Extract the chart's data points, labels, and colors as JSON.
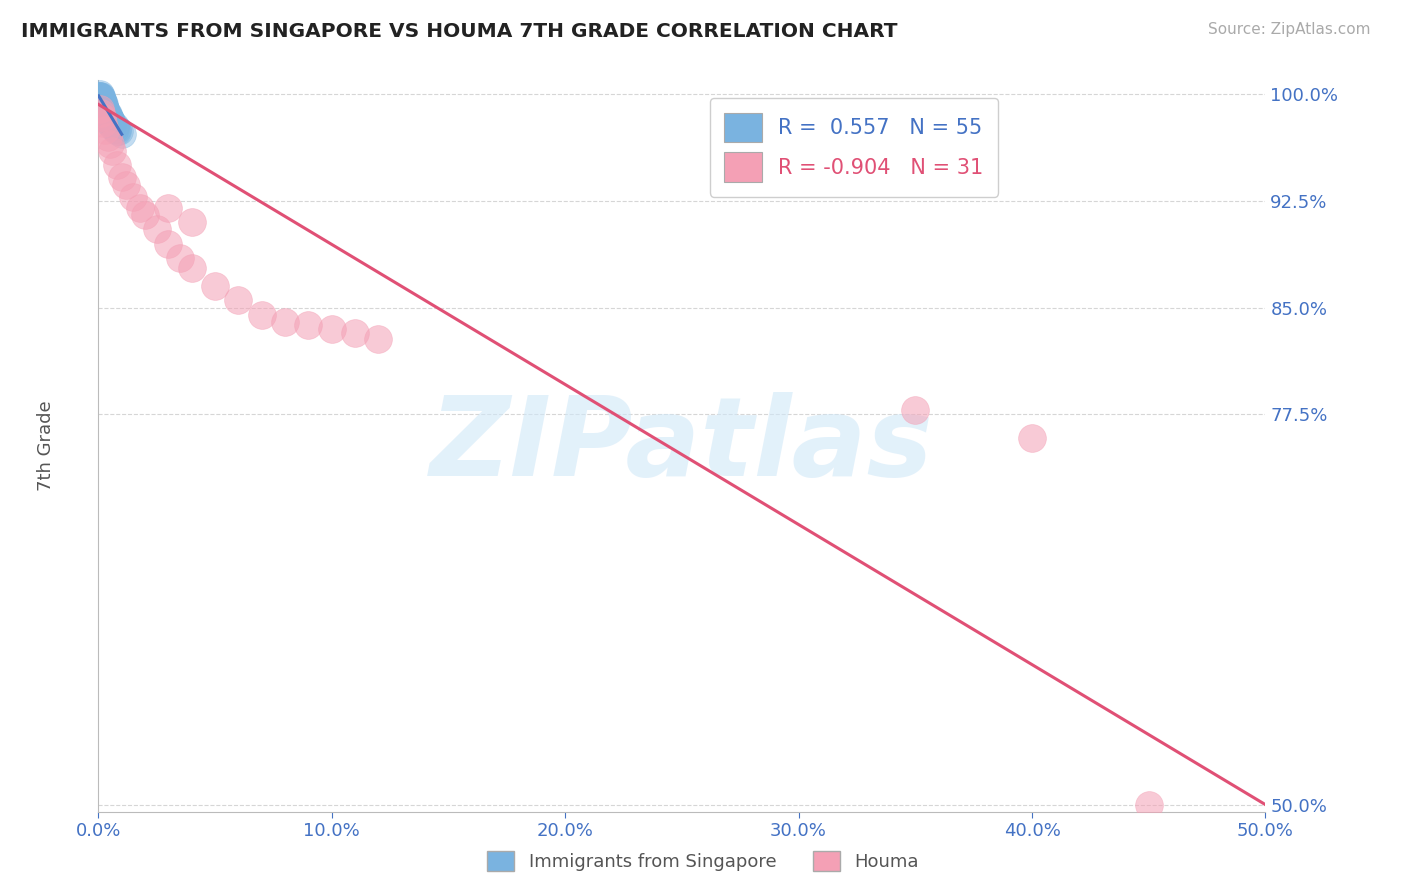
{
  "title": "IMMIGRANTS FROM SINGAPORE VS HOUMA 7TH GRADE CORRELATION CHART",
  "source": "Source: ZipAtlas.com",
  "xlabel_legend1": "Immigrants from Singapore",
  "xlabel_legend2": "Houma",
  "ylabel": "7th Grade",
  "r1": 0.557,
  "n1": 55,
  "r2": -0.904,
  "n2": 31,
  "color_blue": "#7ab3e0",
  "color_pink": "#f4a0b5",
  "color_blue_line": "#4472c4",
  "color_pink_line": "#e05075",
  "color_axis": "#4472c4",
  "xlim": [
    0.0,
    0.5
  ],
  "ylim": [
    0.495,
    1.01
  ],
  "yticks": [
    1.0,
    0.925,
    0.85,
    0.775,
    0.5
  ],
  "ytick_labels": [
    "100.0%",
    "92.5%",
    "85.0%",
    "77.5%",
    "50.0%"
  ],
  "xticks": [
    0.0,
    0.1,
    0.2,
    0.3,
    0.4,
    0.5
  ],
  "xtick_labels": [
    "0.0%",
    "10.0%",
    "20.0%",
    "30.0%",
    "40.0%",
    "50.0%"
  ],
  "blue_x": [
    0.0002,
    0.0003,
    0.0005,
    0.0006,
    0.0007,
    0.0008,
    0.001,
    0.001,
    0.0012,
    0.0013,
    0.0014,
    0.0015,
    0.0016,
    0.0017,
    0.0018,
    0.002,
    0.002,
    0.0022,
    0.0023,
    0.0025,
    0.0027,
    0.003,
    0.003,
    0.0033,
    0.0035,
    0.004,
    0.004,
    0.0045,
    0.005,
    0.005,
    0.0055,
    0.006,
    0.007,
    0.008,
    0.009,
    0.01,
    0.0001,
    0.0002,
    0.0004,
    0.0006,
    0.0009,
    0.0011,
    0.0013,
    0.0016,
    0.0019,
    0.0022,
    0.0026,
    0.003,
    0.0034,
    0.0038,
    0.0043,
    0.005,
    0.006,
    0.007,
    0.008
  ],
  "blue_y": [
    0.998,
    0.997,
    0.999,
    1.0,
    0.998,
    0.996,
    0.999,
    0.997,
    0.998,
    0.996,
    0.997,
    0.995,
    0.996,
    0.994,
    0.995,
    0.993,
    0.994,
    0.992,
    0.993,
    0.991,
    0.99,
    0.989,
    0.99,
    0.988,
    0.987,
    0.986,
    0.985,
    0.984,
    0.983,
    0.982,
    0.981,
    0.98,
    0.978,
    0.976,
    0.974,
    0.972,
    0.999,
    0.998,
    0.999,
    0.997,
    0.996,
    0.995,
    0.994,
    0.993,
    0.991,
    0.99,
    0.988,
    0.987,
    0.985,
    0.984,
    0.982,
    0.98,
    0.978,
    0.976,
    0.974
  ],
  "pink_x": [
    0.0005,
    0.001,
    0.0015,
    0.002,
    0.003,
    0.004,
    0.005,
    0.006,
    0.008,
    0.01,
    0.012,
    0.015,
    0.018,
    0.02,
    0.025,
    0.03,
    0.035,
    0.04,
    0.05,
    0.06,
    0.07,
    0.1,
    0.12,
    0.03,
    0.04,
    0.35,
    0.4,
    0.45,
    0.08,
    0.09,
    0.11
  ],
  "pink_y": [
    0.99,
    0.987,
    0.984,
    0.98,
    0.975,
    0.97,
    0.965,
    0.96,
    0.95,
    0.942,
    0.936,
    0.928,
    0.92,
    0.915,
    0.905,
    0.895,
    0.885,
    0.878,
    0.865,
    0.855,
    0.845,
    0.835,
    0.828,
    0.92,
    0.91,
    0.778,
    0.758,
    0.5,
    0.84,
    0.838,
    0.832
  ],
  "blue_line_x": [
    0.0001,
    0.01
  ],
  "blue_line_y": [
    0.999,
    0.972
  ],
  "pink_line_x": [
    0.0,
    0.5
  ],
  "pink_line_y": [
    0.993,
    0.5
  ],
  "watermark": "ZIPatlas",
  "bg": "#ffffff",
  "grid_color": "#cccccc"
}
